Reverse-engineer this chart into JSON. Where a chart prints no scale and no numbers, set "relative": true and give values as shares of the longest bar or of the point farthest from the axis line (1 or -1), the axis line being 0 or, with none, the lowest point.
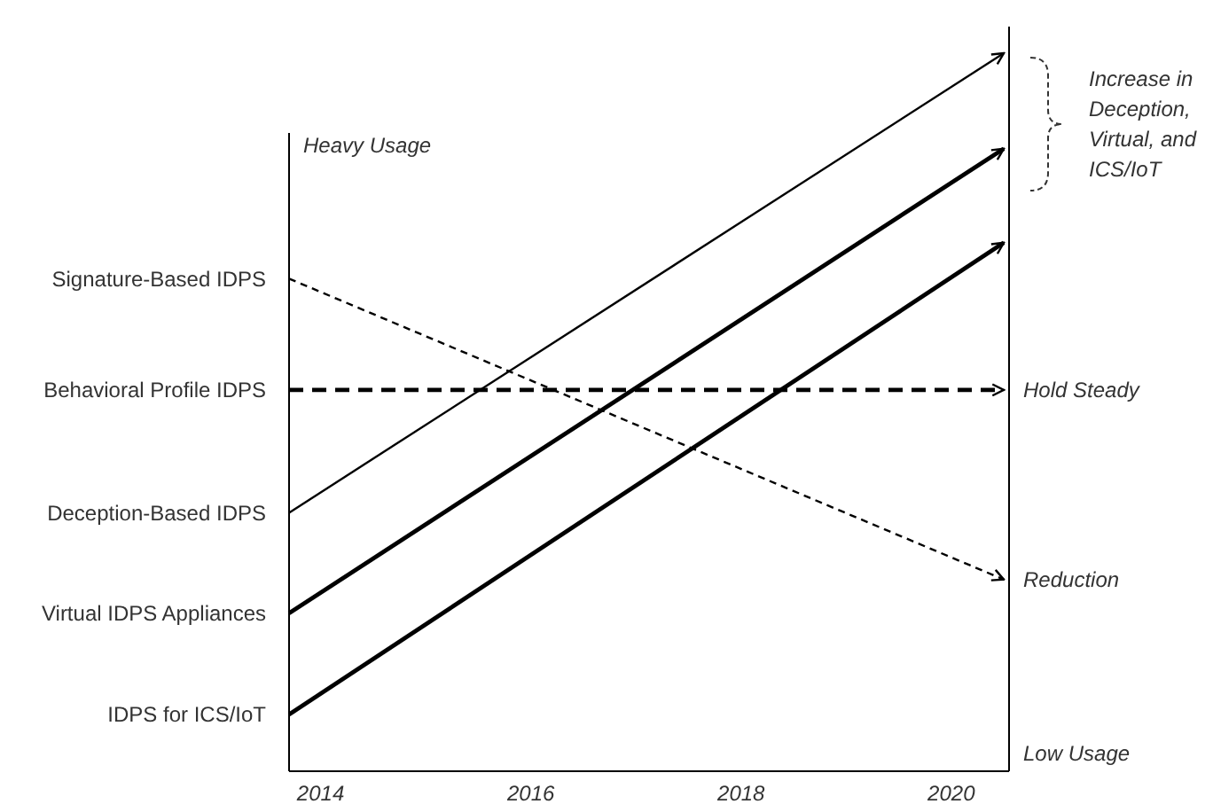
{
  "chart_data": {
    "type": "line",
    "relative": true,
    "marker": "none",
    "legend": false,
    "grid": false,
    "x": [
      2013.7,
      2020.5
    ],
    "xlim": [
      2013.7,
      2020.55
    ],
    "xticks": [
      2014,
      2016,
      2018,
      2020
    ],
    "series": [
      {
        "name": "Signature-Based IDPS",
        "color": "#000000",
        "line_style": "dashed",
        "values": [
          0.686,
          0.267
        ]
      },
      {
        "name": "Behavioral Profile IDPS",
        "color": "#000000",
        "line_style": "dashed",
        "values": [
          0.531,
          0.531
        ]
      },
      {
        "name": "Deception-Based IDPS",
        "color": "#000000",
        "line_style": "solid",
        "values": [
          0.36,
          1
        ]
      },
      {
        "name": "Virtual IDPS Appliances",
        "color": "#000000",
        "line_style": "solid",
        "values": [
          0.22,
          0.867
        ]
      },
      {
        "name": "IDPS for ICS/IoT",
        "color": "#000000",
        "line_style": "solid",
        "values": [
          0.079,
          0.736
        ]
      }
    ],
    "annotations": [
      "Heavy Usage",
      "Low Usage",
      {
        "text": "Hold Steady",
        "x": 2020.55,
        "y": 0.531
      },
      {
        "text": "Reduction",
        "x": 2020.55,
        "y": 0.267
      },
      "Increase in Deception, Virtual, and ICS/IoT"
    ]
  }
}
